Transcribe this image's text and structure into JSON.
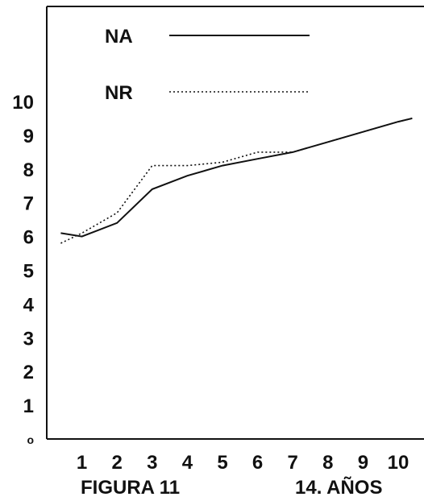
{
  "chart_data": {
    "type": "line",
    "x": [
      1,
      2,
      3,
      4,
      5,
      6,
      7,
      8,
      9,
      10
    ],
    "series": [
      {
        "name": "NA",
        "style": "solid",
        "values": [
          6.0,
          6.4,
          7.4,
          7.8,
          8.1,
          8.3,
          8.5,
          8.8,
          9.1,
          9.4
        ],
        "x0": 0.4,
        "y0": 6.1,
        "x_end": 10.4,
        "y_end": 9.5
      },
      {
        "name": "NR",
        "style": "dotted",
        "values": [
          6.1,
          6.7,
          8.1,
          8.1,
          8.2,
          8.5,
          8.5,
          8.8,
          9.1,
          9.4
        ],
        "x0": 0.4,
        "y0": 5.8,
        "x_end": 10.4,
        "y_end": 9.5
      }
    ],
    "y_ticks": [
      "o",
      "1",
      "2",
      "3",
      "4",
      "5",
      "6",
      "7",
      "8",
      "9",
      "10"
    ],
    "x_ticks": [
      "1",
      "2",
      "3",
      "4",
      "5",
      "6",
      "7",
      "8",
      "9",
      "10"
    ],
    "xlim": [
      0,
      10.4
    ],
    "ylim": [
      0,
      12.4
    ],
    "grid": false,
    "legend_position": "top-left",
    "caption_left": "FIGURA 11",
    "caption_right": "14. AÑOS",
    "line_color": "#111111"
  }
}
